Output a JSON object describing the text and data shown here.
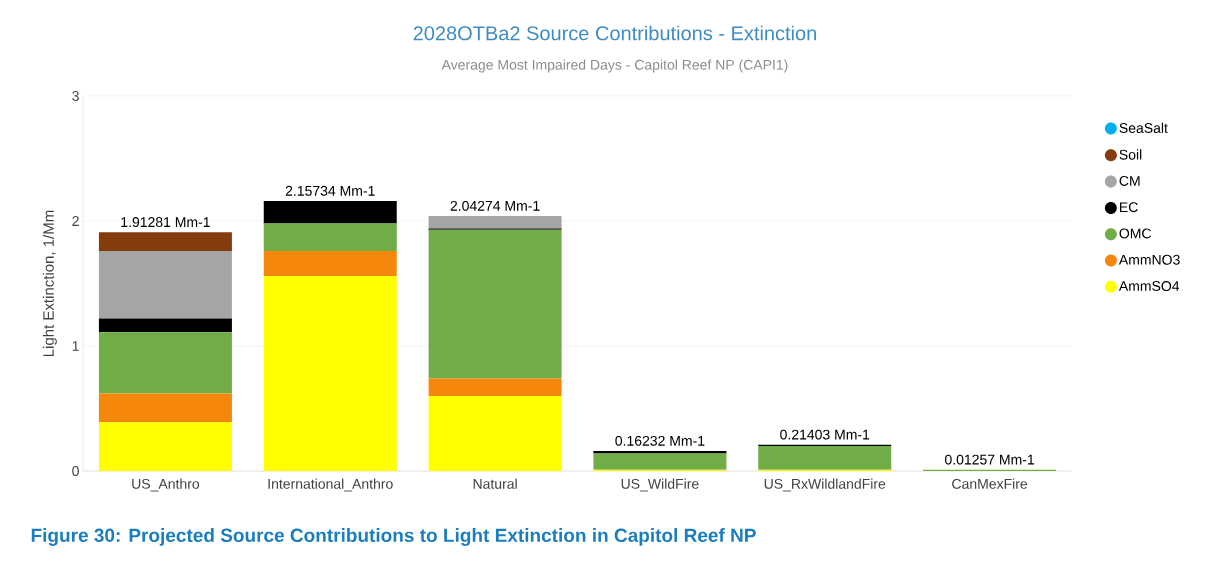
{
  "chart_data": {
    "type": "bar",
    "stacked": true,
    "title": "2028OTBa2 Source Contributions - Extinction",
    "subtitle": "Average Most Impaired Days - Capitol Reef NP (CAPI1)",
    "ylabel": "Light Extinction, 1/Mm",
    "annotations": [
      "Figure 30: Projected Source Contributions to Light Extinction in Capitol Reef NP"
    ],
    "categories": [
      "US_Anthro",
      "International_Anthro",
      "Natural",
      "US_WildFire",
      "US_RxWildlandFire",
      "CanMexFire"
    ],
    "series": [
      {
        "name": "AmmSO4",
        "color": "#ffff00",
        "values": [
          0.39,
          1.56,
          0.6,
          0.01,
          0.01,
          0
        ]
      },
      {
        "name": "AmmNO3",
        "color": "#f5870c",
        "values": [
          0.23,
          0.2,
          0.14,
          0,
          0,
          0
        ]
      },
      {
        "name": "OMC",
        "color": "#70ad47",
        "values": [
          0.49,
          0.22,
          1.19,
          0.13,
          0.19,
          0.01
        ]
      },
      {
        "name": "EC",
        "color": "#000000",
        "values": [
          0.11,
          0.18,
          0.01,
          0.02,
          0.01,
          0
        ]
      },
      {
        "name": "CM",
        "color": "#a5a5a5",
        "values": [
          0.54,
          0,
          0.1,
          0,
          0,
          0
        ]
      },
      {
        "name": "Soil",
        "color": "#843c0c",
        "values": [
          0.15,
          0,
          0,
          0,
          0,
          0
        ]
      },
      {
        "name": "SeaSalt",
        "color": "#00b0f0",
        "values": [
          0,
          0,
          0,
          0,
          0,
          0
        ]
      }
    ],
    "totals": [
      "1.91281 Mm-1",
      "2.15734 Mm-1",
      "2.04274 Mm-1",
      "0.16232 Mm-1",
      "0.21403 Mm-1",
      "0.01257 Mm-1"
    ],
    "ylim": [
      0,
      3
    ],
    "yticks": [
      0,
      1,
      2,
      3
    ],
    "grid": "y",
    "legend": "right"
  }
}
